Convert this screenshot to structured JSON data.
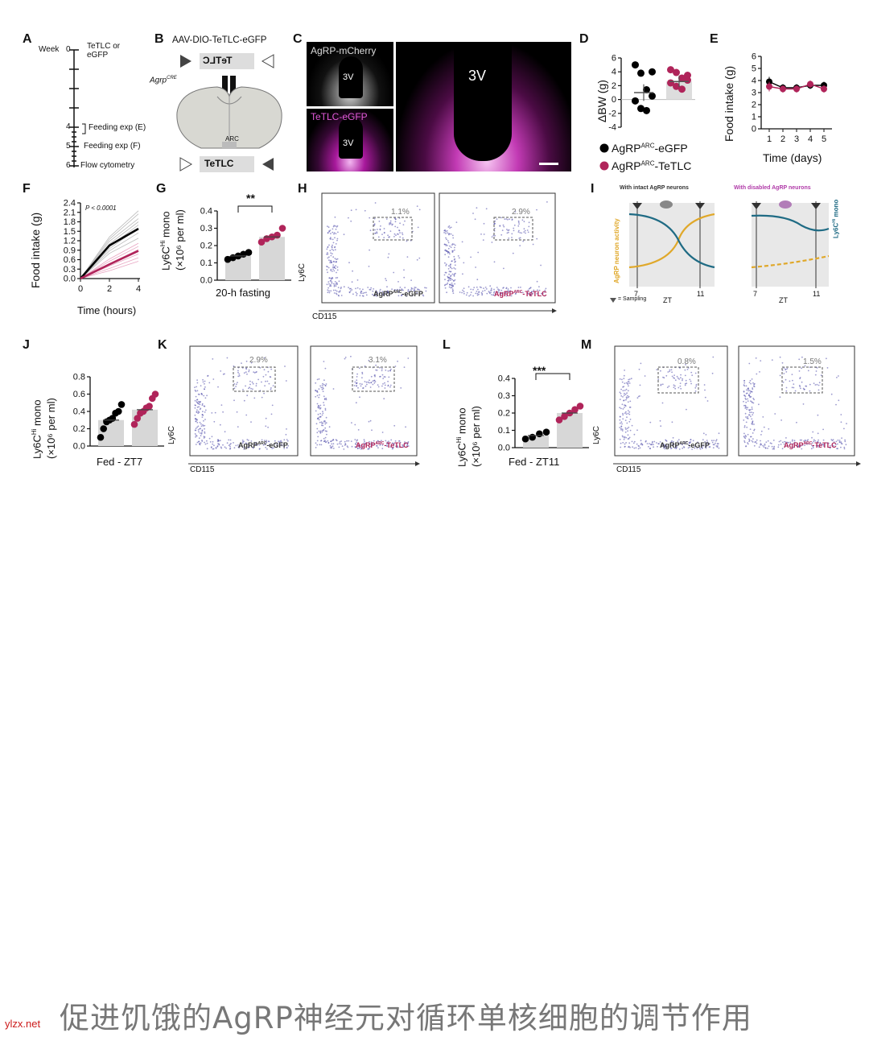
{
  "panels": {
    "A": {
      "label": "A",
      "week_label": "Week",
      "items": [
        {
          "week": "0",
          "text": "TeTLC or eGFP"
        },
        {
          "week": "4",
          "text": "Feeding exp (E)"
        },
        {
          "week": "5",
          "text": "Feeding exp (F)"
        },
        {
          "week": "6",
          "text": "Flow cytometry"
        }
      ]
    },
    "B": {
      "label": "B",
      "vector": "AAV-DIO-TeTLC-eGFP",
      "gene_box": "TeTLC",
      "mouse": "Agrp",
      "mouse_sup": "CRE",
      "region": "ARC",
      "bottom_box": "TeTLC"
    },
    "C": {
      "label": "C",
      "top_left": "AgRP-mCherry",
      "bottom_left": "TeTLC-eGFP",
      "ventricle": "3V"
    },
    "D": {
      "label": "D",
      "ylabel": "ΔBW (g)",
      "legend": [
        {
          "pre": "AgRP",
          "sup": "ARC",
          "post": "-eGFP",
          "color": "#000000"
        },
        {
          "pre": "AgRP",
          "sup": "ARC",
          "post": "-TeTLC",
          "color": "#b0245a"
        }
      ]
    },
    "E": {
      "label": "E",
      "ylabel": "Food intake (g)",
      "xlabel": "Time (days)"
    },
    "F": {
      "label": "F",
      "ylabel": "Food intake (g)",
      "xlabel": "Time (hours)",
      "pvalue": "P < 0.0001"
    },
    "G": {
      "label": "G",
      "ylabel_main": "Ly6C",
      "ylabel_sup": "Hi",
      "ylabel_tail": " mono",
      "ylabel2": "(×10⁶ per ml)",
      "xlabel": "20-h fasting",
      "sig": "**"
    },
    "H": {
      "label": "H",
      "yaxis": "Ly6C",
      "xaxis": "CD115",
      "gates": [
        "1.1%",
        "2.9%"
      ],
      "names": [
        {
          "pre": "AgRP",
          "sup": "ARC",
          "post": "-eGFP",
          "color": "#333333"
        },
        {
          "pre": "AgRP",
          "sup": "ARC",
          "post": "-TeTLC",
          "color": "#b0245a"
        }
      ]
    },
    "I": {
      "label": "I",
      "left_title": "With intact AgRP neurons",
      "right_title": "With disabled AgRP neurons",
      "left_ylabel": "AgRP neuron activity",
      "right_ylabel_main": "Ly6C",
      "right_ylabel_sup": "Hi",
      "right_ylabel_tail": " mono",
      "xlabel": "ZT",
      "t_start": "7",
      "t_end": "11",
      "sampling": "= Sampling"
    },
    "J": {
      "label": "J",
      "ylabel_main": "Ly6C",
      "ylabel_sup": "Hi",
      "ylabel_tail": " mono",
      "ylabel2": "(×10⁶ per ml)",
      "xlabel": "Fed - ZT7"
    },
    "K": {
      "label": "K",
      "yaxis": "Ly6C",
      "xaxis": "CD115",
      "gates": [
        "2.9%",
        "3.1%"
      ]
    },
    "L": {
      "label": "L",
      "ylabel_main": "Ly6C",
      "ylabel_sup": "Hi",
      "ylabel_tail": " mono",
      "ylabel2": "(×10⁶ per ml)",
      "xlabel": "Fed - ZT11",
      "sig": "***"
    },
    "M": {
      "label": "M",
      "yaxis": "Ly6C",
      "xaxis": "CD115",
      "gates": [
        "0.8%",
        "1.5%"
      ]
    }
  },
  "caption": {
    "site": "ylzx.net",
    "title": "促进饥饿的AgRP神经元对循环单核细胞的调节作用"
  },
  "colors": {
    "egfp": "#000000",
    "tetlc": "#b0245a",
    "tetlc_light": "#e8a6c2",
    "amber": "#e0a82a",
    "teal": "#1f6b84",
    "flow": "#4b47a8"
  },
  "chart_data": [
    {
      "id": "D",
      "type": "scatter",
      "ylabel": "ΔBW (g)",
      "ylim": [
        -4,
        6
      ],
      "yticks": [
        -4,
        -2,
        0,
        2,
        4,
        6
      ],
      "series": [
        {
          "name": "AgRP-eGFP",
          "mean": 1.0,
          "sem": 1.2,
          "values": [
            5,
            3.8,
            1.4,
            0.5,
            -0.2,
            -1.3,
            -1.6,
            4.0
          ]
        },
        {
          "name": "AgRP-TeTLC",
          "mean": 2.6,
          "sem": 0.8,
          "values": [
            4.3,
            3.9,
            3.1,
            2.8,
            2.4,
            1.9,
            1.5,
            3.5
          ]
        }
      ]
    },
    {
      "id": "E",
      "type": "line",
      "ylabel": "Food intake (g)",
      "xlabel": "Time (days)",
      "x": [
        1,
        2,
        3,
        4,
        5
      ],
      "ylim": [
        0,
        6
      ],
      "yticks": [
        0,
        1,
        2,
        3,
        4,
        5,
        6
      ],
      "series": [
        {
          "name": "AgRP-eGFP",
          "values": [
            3.9,
            3.4,
            3.4,
            3.6,
            3.6
          ],
          "err": [
            0.4,
            0.3,
            0.3,
            0.3,
            0.3
          ]
        },
        {
          "name": "AgRP-TeTLC",
          "values": [
            3.5,
            3.3,
            3.3,
            3.7,
            3.3
          ],
          "err": [
            0.4,
            0.3,
            0.3,
            0.3,
            0.3
          ]
        }
      ]
    },
    {
      "id": "F",
      "type": "line",
      "ylabel": "Food intake (g)",
      "xlabel": "Time (hours)",
      "x": [
        0,
        2,
        4
      ],
      "ylim": [
        0,
        2.4
      ],
      "yticks": [
        0.0,
        0.3,
        0.6,
        0.9,
        1.2,
        1.5,
        1.8,
        2.1,
        2.4
      ],
      "xticks": [
        0,
        2,
        4
      ],
      "series": [
        {
          "name": "AgRP-eGFP",
          "values": [
            0,
            1.05,
            1.58
          ]
        },
        {
          "name": "AgRP-TeTLC",
          "values": [
            0,
            0.45,
            0.88
          ]
        }
      ]
    },
    {
      "id": "G",
      "type": "bar",
      "categories": [
        "AgRP-eGFP",
        "AgRP-TeTLC"
      ],
      "values": [
        0.14,
        0.25
      ],
      "ylim": [
        0,
        0.4
      ],
      "yticks": [
        0.0,
        0.1,
        0.2,
        0.3,
        0.4
      ],
      "points": [
        [
          0.12,
          0.13,
          0.14,
          0.15,
          0.16
        ],
        [
          0.22,
          0.24,
          0.25,
          0.26,
          0.3
        ]
      ]
    },
    {
      "id": "J",
      "type": "bar",
      "categories": [
        "AgRP-eGFP",
        "AgRP-TeTLC"
      ],
      "values": [
        0.3,
        0.42
      ],
      "ylim": [
        0,
        0.8
      ],
      "yticks": [
        0.0,
        0.2,
        0.4,
        0.6,
        0.8
      ],
      "points": [
        [
          0.1,
          0.2,
          0.28,
          0.3,
          0.32,
          0.38,
          0.4,
          0.48
        ],
        [
          0.25,
          0.32,
          0.38,
          0.4,
          0.44,
          0.46,
          0.55,
          0.6
        ]
      ]
    },
    {
      "id": "L",
      "type": "bar",
      "categories": [
        "AgRP-eGFP",
        "AgRP-TeTLC"
      ],
      "values": [
        0.07,
        0.2
      ],
      "ylim": [
        0,
        0.4
      ],
      "yticks": [
        0.0,
        0.1,
        0.2,
        0.3,
        0.4
      ],
      "points": [
        [
          0.05,
          0.06,
          0.08,
          0.09
        ],
        [
          0.16,
          0.18,
          0.2,
          0.22,
          0.24
        ]
      ]
    }
  ]
}
